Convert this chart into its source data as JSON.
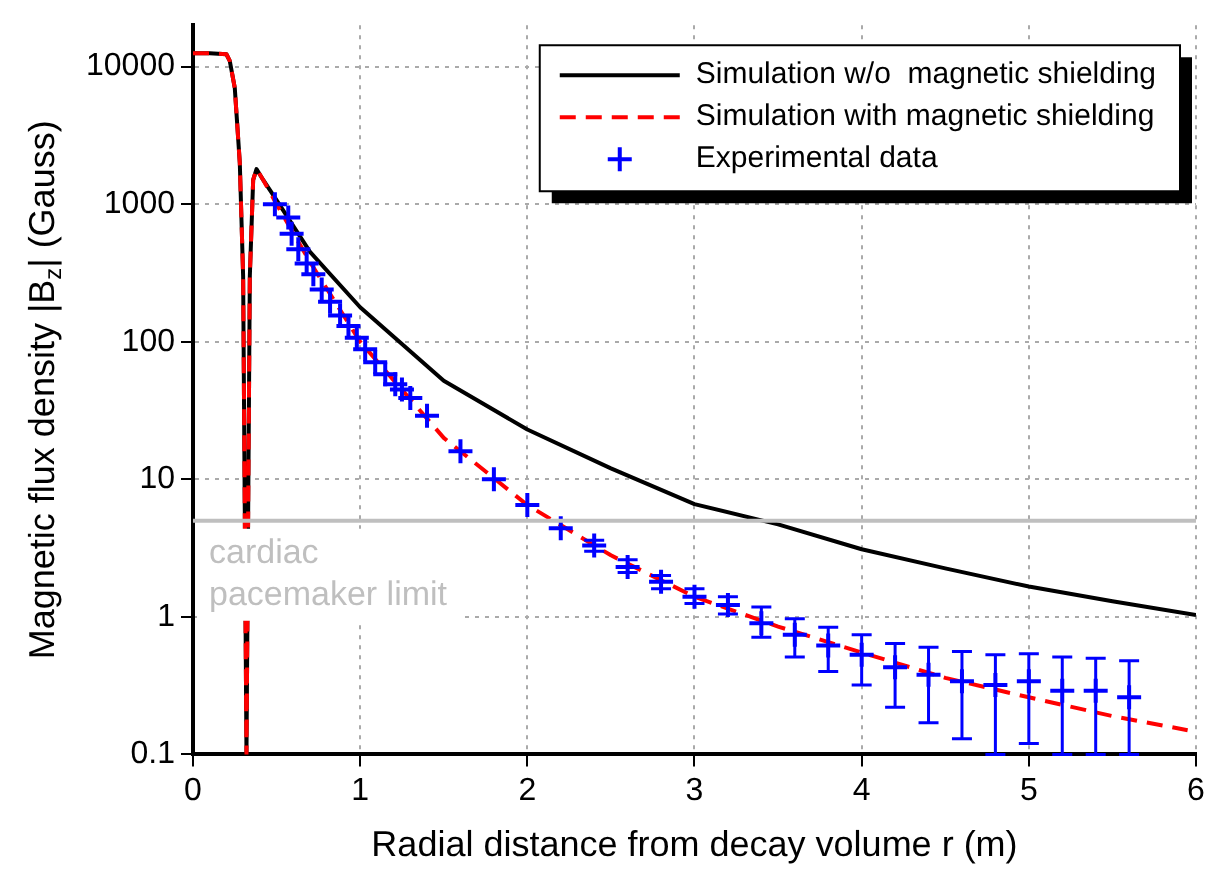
{
  "chart_data": {
    "type": "line",
    "xlabel": "Radial distance from decay volume r (m)",
    "ylabel": "Magnetic flux density |B$_{z}$| (Gauss)",
    "xlim": [
      0,
      6
    ],
    "xticks": [
      0,
      1,
      2,
      3,
      4,
      5,
      6
    ],
    "ylim": [
      0.1,
      20000
    ],
    "yticks": [
      0.1,
      1,
      10,
      100,
      1000,
      10000
    ],
    "log": "y",
    "grid": true,
    "legend": "top right",
    "series": [
      {
        "name": "Simulation w/o  magnetic shielding",
        "color": "#000000",
        "line_style": "solid",
        "marker": "none",
        "x": [
          0,
          0.1,
          0.2,
          0.22,
          0.25,
          0.28,
          0.3,
          0.32,
          0.34,
          0.36,
          0.38,
          0.42,
          0.5,
          0.7,
          1,
          1.5,
          2,
          2.5,
          3,
          3.5,
          4,
          4.5,
          5,
          5.5,
          6
        ],
        "values": [
          12500,
          12500,
          12300,
          11000,
          7000,
          2000,
          300,
          0.1,
          300,
          1500,
          1800,
          1500,
          1070,
          450,
          178,
          52,
          23,
          12,
          6.6,
          4.7,
          3.1,
          2.25,
          1.66,
          1.3,
          1.03
        ]
      },
      {
        "name": "Simulation with magnetic shielding",
        "color": "#ff0000",
        "line_style": "dashed",
        "marker": "none",
        "x": [
          0,
          0.1,
          0.2,
          0.22,
          0.25,
          0.28,
          0.3,
          0.32,
          0.34,
          0.36,
          0.38,
          0.42,
          0.5,
          0.7,
          1,
          1.5,
          2,
          2.5,
          3,
          3.5,
          4,
          4.5,
          5,
          5.5,
          5.95
        ],
        "values": [
          12500,
          12500,
          12300,
          11000,
          7000,
          2000,
          300,
          0.1,
          300,
          1500,
          1800,
          1500,
          1000,
          380,
          100,
          20,
          6.5,
          2.8,
          1.4,
          0.85,
          0.55,
          0.36,
          0.26,
          0.19,
          0.15
        ]
      },
      {
        "name": "Experimental data",
        "type": "scatter",
        "color": "#0000ff",
        "marker": "cross",
        "x": [
          0.49,
          0.57,
          0.59,
          0.63,
          0.68,
          0.72,
          0.77,
          0.82,
          0.88,
          0.93,
          0.98,
          1.03,
          1.09,
          1.15,
          1.21,
          1.25,
          1.3,
          1.4,
          1.6,
          1.8,
          2.0,
          2.2,
          2.4,
          2.6,
          2.8,
          3.0,
          3.2,
          3.4,
          3.6,
          3.8,
          4.0,
          4.2,
          4.4,
          4.6,
          4.8,
          5.0,
          5.2,
          5.4,
          5.6
        ],
        "values": [
          1000,
          800,
          610,
          470,
          370,
          310,
          240,
          195,
          155,
          130,
          107,
          88,
          71,
          58,
          49,
          45,
          39,
          29,
          16,
          10,
          6.5,
          4.4,
          3.3,
          2.3,
          1.8,
          1.4,
          1.22,
          0.9,
          0.74,
          0.62,
          0.53,
          0.43,
          0.38,
          0.34,
          0.32,
          0.34,
          0.29,
          0.29,
          0.26
        ],
        "errors": [
          null,
          null,
          null,
          null,
          null,
          null,
          null,
          null,
          null,
          null,
          null,
          null,
          null,
          null,
          null,
          null,
          null,
          null,
          null,
          null,
          null,
          null,
          [
            3.0,
            3.6
          ],
          [
            2.1,
            2.6
          ],
          [
            1.6,
            2.0
          ],
          [
            1.25,
            1.6
          ],
          [
            1.05,
            1.4
          ],
          [
            0.71,
            1.18
          ],
          [
            0.51,
            0.97
          ],
          [
            0.4,
            0.84
          ],
          [
            0.32,
            0.74
          ],
          [
            0.22,
            0.64
          ],
          [
            0.17,
            0.6
          ],
          [
            0.13,
            0.56
          ],
          [
            0.1,
            0.53
          ],
          [
            0.12,
            0.54
          ],
          [
            0.1,
            0.51
          ],
          [
            0.1,
            0.5
          ],
          [
            0.1,
            0.48
          ]
        ]
      }
    ],
    "ref_lines": [
      {
        "axis": "y",
        "value": 5,
        "label": "cardiac\npacemaker limit",
        "color": "#bfbfbf"
      }
    ]
  }
}
